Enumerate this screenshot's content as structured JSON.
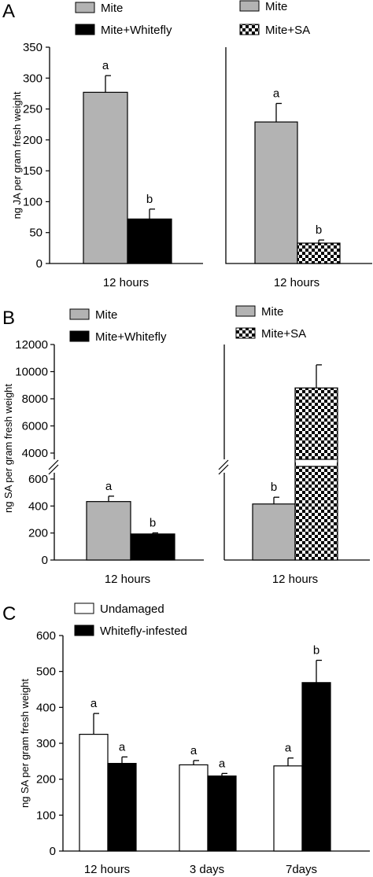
{
  "colors": {
    "gray": "#b3b3b3",
    "black": "#000000",
    "white": "#ffffff",
    "checker_dark": "#000000",
    "checker_light": "#ffffff"
  },
  "chart_data": [
    {
      "panel": "A",
      "type": "bar",
      "ylabel": "ng JA per gram fresh weight",
      "categories": [
        "12 hours"
      ],
      "ylim": [
        0,
        350
      ],
      "yticks": [
        "0",
        "50",
        "100",
        "150",
        "200",
        "250",
        "300",
        "350"
      ],
      "series": [
        {
          "name": "Mite",
          "values": [
            277
          ],
          "error": [
            27
          ],
          "letters": [
            "a"
          ],
          "fill": "gray"
        },
        {
          "name": "Mite+Whitefly",
          "values": [
            72
          ],
          "error": [
            16
          ],
          "letters": [
            "b"
          ],
          "fill": "black"
        }
      ]
    },
    {
      "panel": "A",
      "type": "bar",
      "categories": [
        "12 hours"
      ],
      "ylim": [
        0,
        350
      ],
      "series": [
        {
          "name": "Mite",
          "values": [
            229
          ],
          "error": [
            30
          ],
          "letters": [
            "a"
          ],
          "fill": "gray"
        },
        {
          "name": "Mite+SA",
          "values": [
            33
          ],
          "error": [
            5
          ],
          "letters": [
            "b"
          ],
          "fill": "checker"
        }
      ]
    },
    {
      "panel": "B",
      "type": "bar",
      "ylabel": "ng SA per gram fresh weight",
      "categories": [
        "12 hours"
      ],
      "broken_axis": [
        [
          0,
          600
        ],
        [
          4000,
          12000
        ]
      ],
      "yticks": [
        "0",
        "200",
        "400",
        "600",
        "4000",
        "6000",
        "8000",
        "10000",
        "12000"
      ],
      "series": [
        {
          "name": "Mite",
          "values": [
            433
          ],
          "error": [
            40
          ],
          "letters": [
            "a"
          ],
          "fill": "gray"
        },
        {
          "name": "Mite+Whitefly",
          "values": [
            193
          ],
          "error": [
            8
          ],
          "letters": [
            "b"
          ],
          "fill": "black"
        }
      ]
    },
    {
      "panel": "B",
      "type": "bar",
      "categories": [
        "12 hours"
      ],
      "broken_axis": [
        [
          0,
          600
        ],
        [
          4000,
          12000
        ]
      ],
      "series": [
        {
          "name": "Mite",
          "values": [
            415
          ],
          "error": [
            50
          ],
          "letters": [
            "b"
          ],
          "fill": "gray"
        },
        {
          "name": "Mite+SA",
          "values": [
            8800
          ],
          "error": [
            1700
          ],
          "letters": [
            ""
          ],
          "fill": "checker"
        }
      ]
    },
    {
      "panel": "C",
      "type": "bar",
      "ylabel": "ng SA per gram fresh weight",
      "categories": [
        "12 hours",
        "3 days",
        "7days"
      ],
      "ylim": [
        0,
        600
      ],
      "yticks": [
        "0",
        "100",
        "200",
        "300",
        "400",
        "500",
        "600"
      ],
      "series": [
        {
          "name": "Undamaged",
          "values": [
            325,
            240,
            237
          ],
          "error": [
            58,
            12,
            22
          ],
          "letters": [
            "a",
            "a",
            "a"
          ],
          "fill": "white"
        },
        {
          "name": "Whitefly-infested",
          "values": [
            244,
            209,
            469
          ],
          "error": [
            18,
            7,
            62
          ],
          "letters": [
            "a",
            "a",
            "b"
          ],
          "fill": "black"
        }
      ]
    }
  ]
}
